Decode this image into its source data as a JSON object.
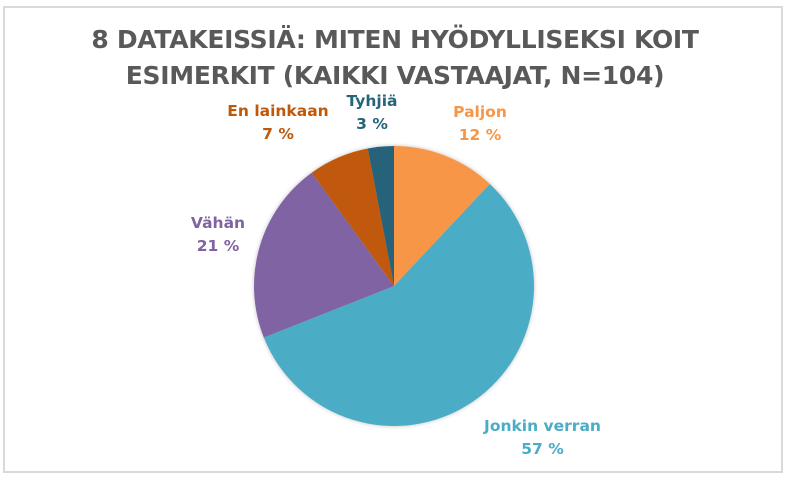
{
  "chart_data": {
    "type": "pie",
    "title": "8 DATAKEISSIÄ: MITEN HYÖDYLLISEKSI KOIT ESIMERKIT (KAIKKI VASTAAJAT, N=104)",
    "title_lines": [
      "8 DATAKEISSIÄ: MITEN HYÖDYLLISEKSI KOIT",
      "ESIMERKIT (KAIKKI VASTAAJAT, N=104)"
    ],
    "categories": [
      "Paljon",
      "Jonkin verran",
      "Vähän",
      "En lainkaan",
      "Tyhjiä"
    ],
    "values": [
      12,
      57,
      21,
      7,
      3
    ],
    "value_labels": [
      "12 %",
      "57 %",
      "21 %",
      "7 %",
      "3 %"
    ],
    "colors": [
      "#f79646",
      "#4bacc6",
      "#8064a2",
      "#c0580a",
      "#25647a"
    ],
    "label_colors": [
      "#f79646",
      "#4bacc6",
      "#8064a2",
      "#c0580a",
      "#25647a"
    ],
    "start_angle_deg": 0,
    "direction": "clockwise",
    "legend": "none (data labels with category names)"
  }
}
